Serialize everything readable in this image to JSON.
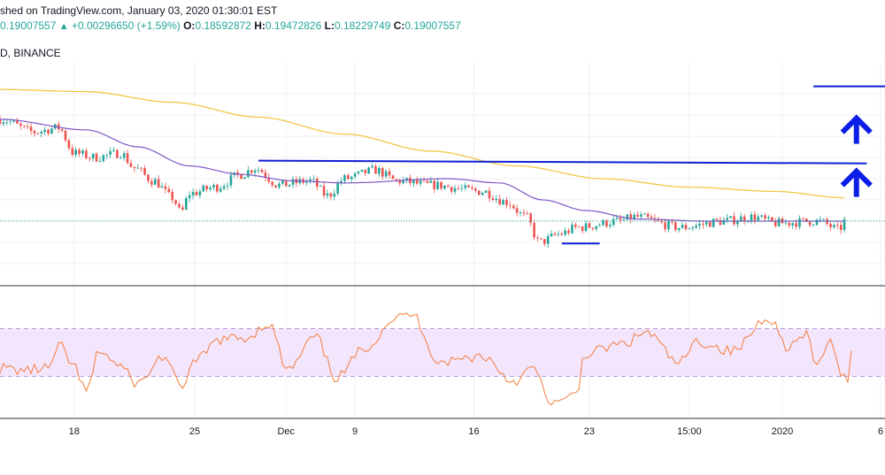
{
  "header": {
    "published": "shed on TradingView.com, January 03, 2020 01:30:01 EST",
    "price": "0.19007557",
    "change": "+0.00296650 (+1.59%)",
    "ohlc": [
      {
        "label": "O:",
        "value": "0.18592872"
      },
      {
        "label": "H:",
        "value": "0.19472826"
      },
      {
        "label": "L:",
        "value": "0.18229749"
      },
      {
        "label": "C:",
        "value": "0.19007557"
      }
    ],
    "symbol": "D, BINANCE",
    "up_icon": "triangle-up-icon"
  },
  "colors": {
    "up": "#26a69a",
    "down": "#ef5350",
    "ma_fast": "#7e57c2",
    "ma_slow": "#f2c744",
    "trendline": "#0d1fd4",
    "arrow": "#0a1ee8",
    "rsi": "#f57c3c",
    "rsi_band": "#f3e5fc",
    "last_price": "#26a69a"
  },
  "chart_data": [
    {
      "type": "line",
      "name": "price_candles_with_moving_averages",
      "x_ticks": [
        "18",
        "25",
        "Dec",
        "9",
        "16",
        "23",
        "15:00",
        "2020",
        "6"
      ],
      "x_tick_pos": [
        4.3,
        11.3,
        16.6,
        20.6,
        27.5,
        34.2,
        40.0,
        45.4,
        51.1
      ],
      "x_range": [
        0,
        51.1
      ],
      "y_range": [
        0.16,
        0.265
      ],
      "last_price": 0.19007,
      "grid": true,
      "candle_close_keypoints": [
        {
          "x": 0,
          "y": 0.238
        },
        {
          "x": 2,
          "y": 0.232
        },
        {
          "x": 3.4,
          "y": 0.234
        },
        {
          "x": 4.3,
          "y": 0.222
        },
        {
          "x": 5.5,
          "y": 0.22
        },
        {
          "x": 7.0,
          "y": 0.222
        },
        {
          "x": 7.8,
          "y": 0.215
        },
        {
          "x": 8.9,
          "y": 0.209
        },
        {
          "x": 10.0,
          "y": 0.201
        },
        {
          "x": 10.5,
          "y": 0.194
        },
        {
          "x": 11.0,
          "y": 0.203
        },
        {
          "x": 12.5,
          "y": 0.206
        },
        {
          "x": 14.0,
          "y": 0.212
        },
        {
          "x": 14.8,
          "y": 0.215
        },
        {
          "x": 16.2,
          "y": 0.207
        },
        {
          "x": 18.0,
          "y": 0.209
        },
        {
          "x": 19.0,
          "y": 0.202
        },
        {
          "x": 20.0,
          "y": 0.21
        },
        {
          "x": 21.8,
          "y": 0.214
        },
        {
          "x": 23.0,
          "y": 0.209
        },
        {
          "x": 25.0,
          "y": 0.207
        },
        {
          "x": 28.0,
          "y": 0.204
        },
        {
          "x": 29.4,
          "y": 0.199
        },
        {
          "x": 30.5,
          "y": 0.192
        },
        {
          "x": 31.3,
          "y": 0.18
        },
        {
          "x": 32.5,
          "y": 0.184
        },
        {
          "x": 33.5,
          "y": 0.187
        },
        {
          "x": 36.0,
          "y": 0.19
        },
        {
          "x": 36.8,
          "y": 0.192
        },
        {
          "x": 39.5,
          "y": 0.187
        },
        {
          "x": 42.0,
          "y": 0.19
        },
        {
          "x": 43.7,
          "y": 0.192
        },
        {
          "x": 45.0,
          "y": 0.189
        },
        {
          "x": 47.5,
          "y": 0.19
        },
        {
          "x": 48.7,
          "y": 0.186
        },
        {
          "x": 49.0,
          "y": 0.19
        }
      ],
      "ma_fast_keypoints": [
        {
          "x": 0,
          "y": 0.238
        },
        {
          "x": 5,
          "y": 0.233
        },
        {
          "x": 8,
          "y": 0.225
        },
        {
          "x": 11,
          "y": 0.216
        },
        {
          "x": 14,
          "y": 0.212
        },
        {
          "x": 17,
          "y": 0.209
        },
        {
          "x": 20,
          "y": 0.208
        },
        {
          "x": 26,
          "y": 0.21
        },
        {
          "x": 29,
          "y": 0.208
        },
        {
          "x": 31.5,
          "y": 0.2
        },
        {
          "x": 34,
          "y": 0.195
        },
        {
          "x": 37,
          "y": 0.191
        },
        {
          "x": 41,
          "y": 0.19
        },
        {
          "x": 44,
          "y": 0.19
        },
        {
          "x": 47,
          "y": 0.19
        },
        {
          "x": 49,
          "y": 0.19
        }
      ],
      "ma_slow_keypoints": [
        {
          "x": 0,
          "y": 0.252
        },
        {
          "x": 5,
          "y": 0.251
        },
        {
          "x": 10,
          "y": 0.246
        },
        {
          "x": 15,
          "y": 0.239
        },
        {
          "x": 20,
          "y": 0.231
        },
        {
          "x": 25,
          "y": 0.223
        },
        {
          "x": 30,
          "y": 0.216
        },
        {
          "x": 35,
          "y": 0.21
        },
        {
          "x": 40,
          "y": 0.206
        },
        {
          "x": 45,
          "y": 0.204
        },
        {
          "x": 49,
          "y": 0.201
        }
      ],
      "annotations": [
        {
          "kind": "trendline",
          "from": {
            "x": 15.0,
            "y": 0.2185
          },
          "to": {
            "x": 50.3,
            "y": 0.2172
          }
        },
        {
          "kind": "horizontal-line",
          "from": {
            "x": 47.2,
            "y": 0.2535
          },
          "to": {
            "x": 51.7,
            "y": 0.2535
          }
        },
        {
          "kind": "horizontal-line",
          "from": {
            "x": 32.6,
            "y": 0.1795
          },
          "to": {
            "x": 34.8,
            "y": 0.1795
          }
        },
        {
          "kind": "up-arrow",
          "at": {
            "x": 49.7,
            "y": 0.2335
          }
        },
        {
          "kind": "up-arrow",
          "at": {
            "x": 49.7,
            "y": 0.2085
          }
        }
      ]
    },
    {
      "type": "line",
      "name": "rsi",
      "y_range": [
        0,
        100
      ],
      "band": [
        30,
        70
      ],
      "x_range": [
        0,
        51.1
      ],
      "keypoints": [
        {
          "x": 0,
          "y": 37
        },
        {
          "x": 1.5,
          "y": 35
        },
        {
          "x": 2.8,
          "y": 37
        },
        {
          "x": 3.5,
          "y": 55
        },
        {
          "x": 4.3,
          "y": 38
        },
        {
          "x": 5.0,
          "y": 17
        },
        {
          "x": 5.8,
          "y": 52
        },
        {
          "x": 6.8,
          "y": 40
        },
        {
          "x": 8.0,
          "y": 24
        },
        {
          "x": 9.5,
          "y": 47
        },
        {
          "x": 10.5,
          "y": 20
        },
        {
          "x": 11.2,
          "y": 41
        },
        {
          "x": 12.8,
          "y": 61
        },
        {
          "x": 14.2,
          "y": 62
        },
        {
          "x": 15.6,
          "y": 74
        },
        {
          "x": 16.7,
          "y": 35
        },
        {
          "x": 18.3,
          "y": 63
        },
        {
          "x": 19.5,
          "y": 29
        },
        {
          "x": 21.3,
          "y": 55
        },
        {
          "x": 22.8,
          "y": 78
        },
        {
          "x": 23.9,
          "y": 82
        },
        {
          "x": 25.5,
          "y": 42
        },
        {
          "x": 28.0,
          "y": 47
        },
        {
          "x": 29.8,
          "y": 26
        },
        {
          "x": 31.0,
          "y": 37
        },
        {
          "x": 31.8,
          "y": 10
        },
        {
          "x": 32.6,
          "y": 8
        },
        {
          "x": 33.5,
          "y": 16
        },
        {
          "x": 33.9,
          "y": 49
        },
        {
          "x": 36.2,
          "y": 57
        },
        {
          "x": 37.5,
          "y": 67
        },
        {
          "x": 39.4,
          "y": 41
        },
        {
          "x": 40.5,
          "y": 59
        },
        {
          "x": 42.5,
          "y": 51
        },
        {
          "x": 44.6,
          "y": 80
        },
        {
          "x": 45.7,
          "y": 55
        },
        {
          "x": 46.8,
          "y": 64
        },
        {
          "x": 47.4,
          "y": 38
        },
        {
          "x": 48.1,
          "y": 60
        },
        {
          "x": 48.8,
          "y": 32
        },
        {
          "x": 49.2,
          "y": 29
        },
        {
          "x": 49.4,
          "y": 53
        }
      ]
    }
  ]
}
